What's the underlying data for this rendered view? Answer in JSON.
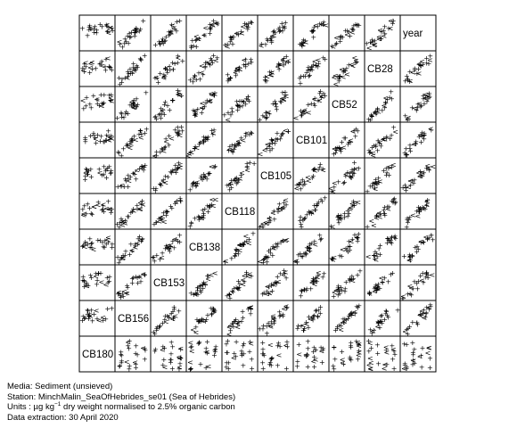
{
  "chart_data": {
    "type": "scatter",
    "subtype": "pairs-matrix",
    "variables": [
      "CB180",
      "CB156",
      "CB153",
      "CB138",
      "CB118",
      "CB105",
      "CB101",
      "CB52",
      "CB28",
      "year"
    ],
    "marker": "+",
    "marker_alt": "<",
    "grid": false
  },
  "footer": {
    "media": "Media: Sediment (unsieved)",
    "station": "Station: MinchMalin_SeaOfHebrides_se01 (Sea of Hebrides)",
    "units_prefix": "Units : µg kg",
    "units_sup": "−1",
    "units_suffix": " dry weight normalised to 2.5% organic carbon",
    "extraction": "Data extraction: 30 April 2020"
  }
}
